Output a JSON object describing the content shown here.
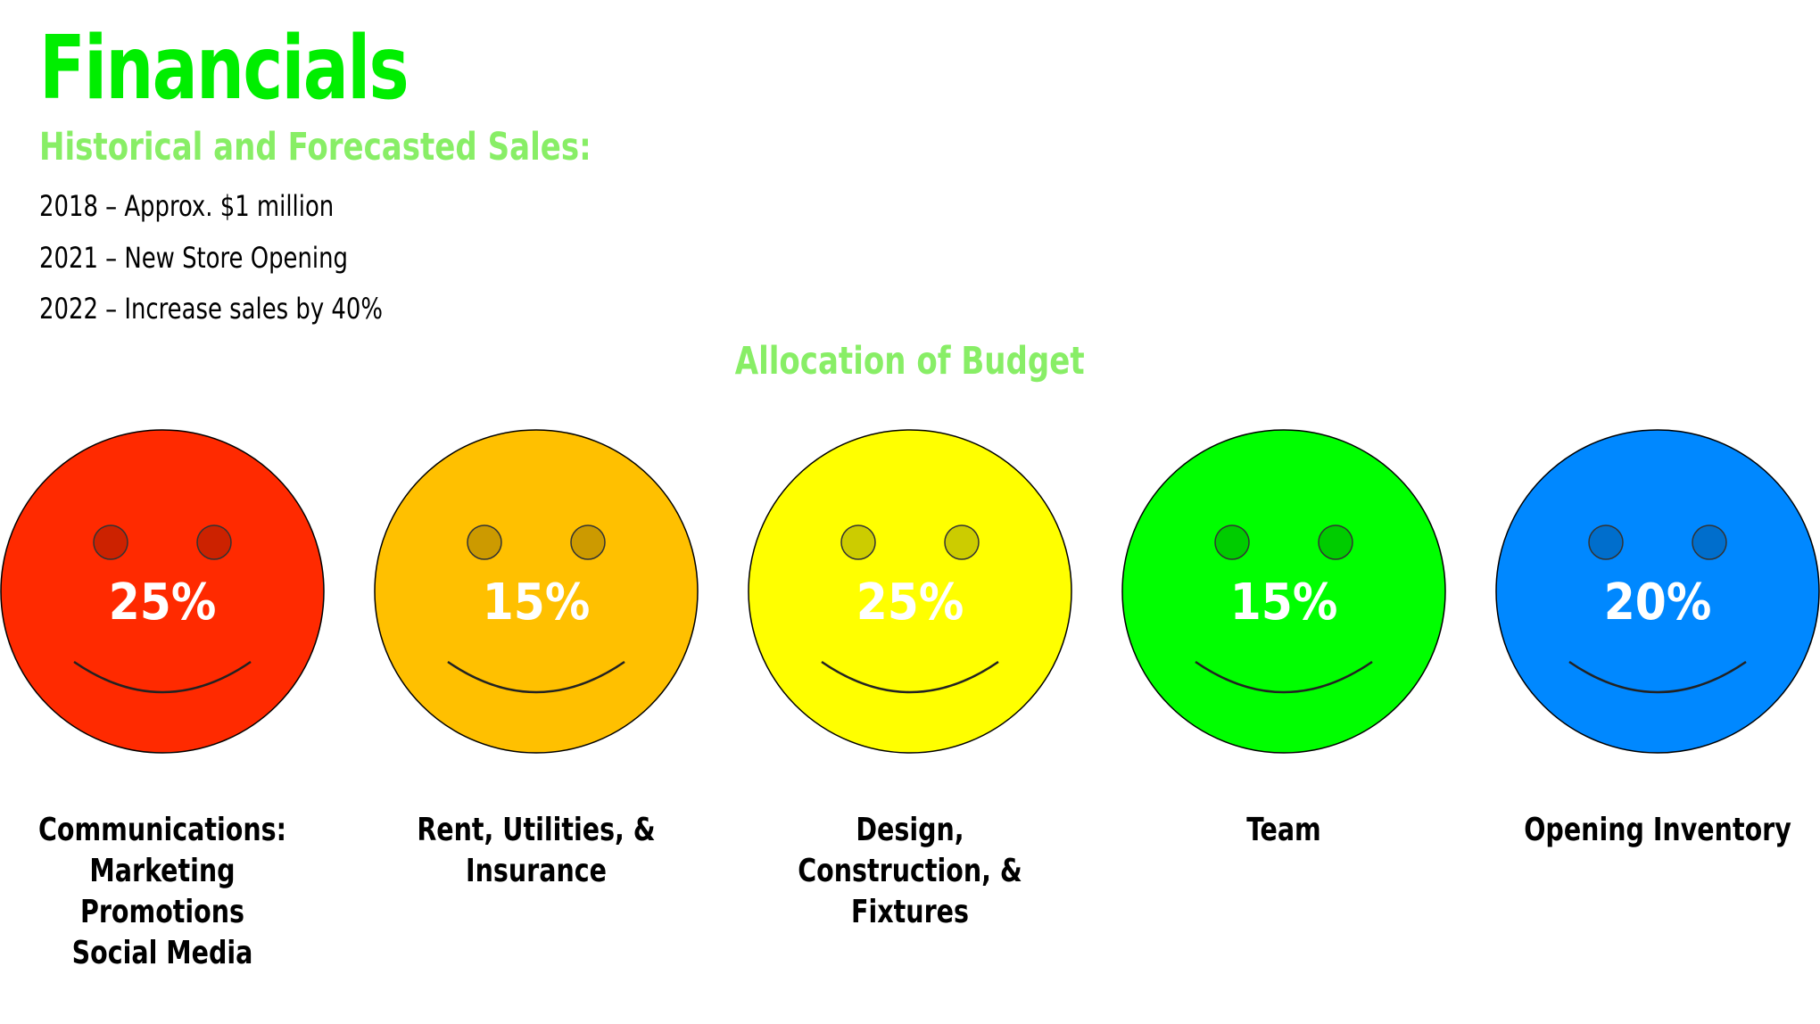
{
  "header": {
    "title": "Financials",
    "subtitle": "Historical and Forecasted Sales:",
    "sales_lines": [
      "2018 – Approx. $1 million",
      "2021 – New Store Opening",
      "2022 – Increase sales by 40%"
    ]
  },
  "budget": {
    "heading": "Allocation of Budget",
    "items": [
      {
        "percent": "25%",
        "label_lines": [
          "Communications:",
          "Marketing",
          "Promotions",
          "Social Media"
        ],
        "color": "#ff2a00",
        "eye_color": "#cc2200"
      },
      {
        "percent": "15%",
        "label_lines": [
          "Rent, Utilities, &",
          "Insurance"
        ],
        "color": "#ffc000",
        "eye_color": "#cc9a00"
      },
      {
        "percent": "25%",
        "label_lines": [
          "Design,",
          "Construction, &",
          "Fixtures"
        ],
        "color": "#ffff00",
        "eye_color": "#cccc00"
      },
      {
        "percent": "15%",
        "label_lines": [
          "Team"
        ],
        "color": "#00ff00",
        "eye_color": "#00cc00"
      },
      {
        "percent": "20%",
        "label_lines": [
          "Opening Inventory"
        ],
        "color": "#0088ff",
        "eye_color": "#006ecc"
      }
    ]
  },
  "colors": {
    "title": "#00ee00",
    "subtitle": "#88ee66"
  }
}
